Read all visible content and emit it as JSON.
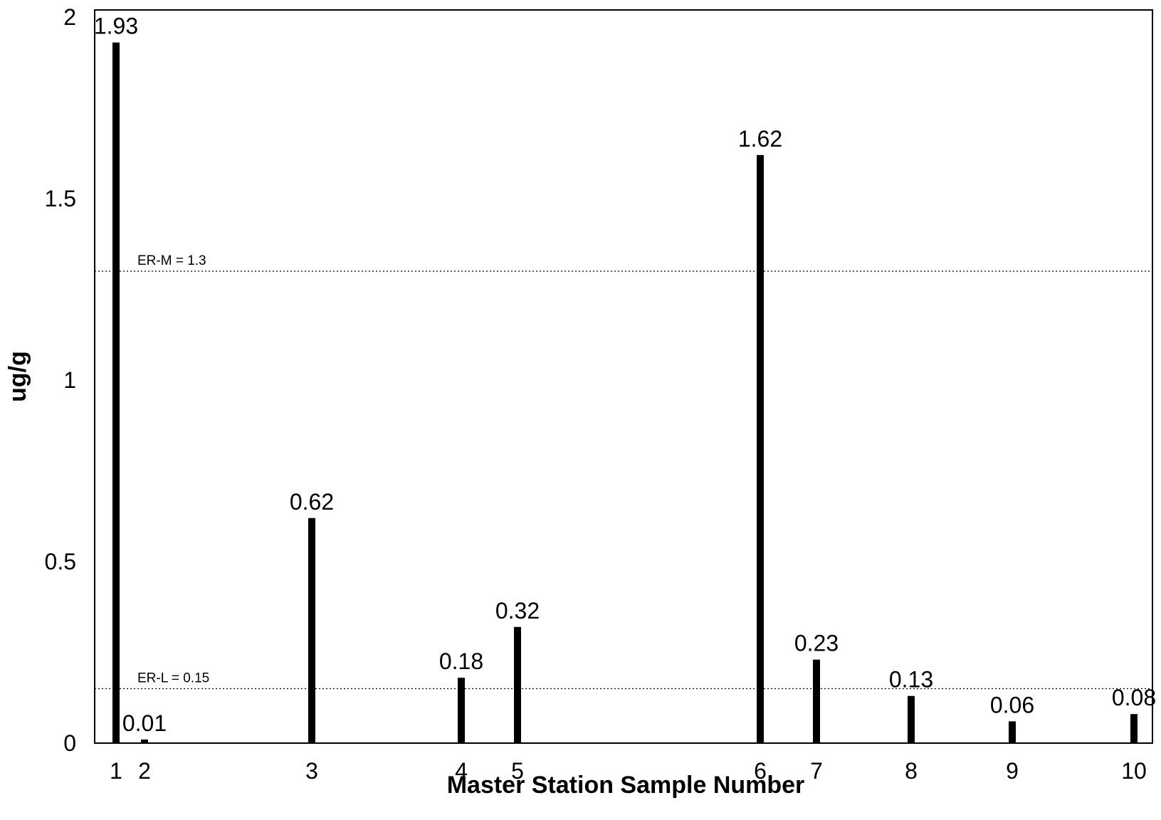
{
  "chart_data": {
    "type": "bar",
    "x": [
      1,
      2,
      3,
      4,
      5,
      6,
      7,
      8,
      9,
      10
    ],
    "values": [
      1.93,
      0.01,
      0.62,
      0.18,
      0.32,
      1.62,
      0.23,
      0.13,
      0.06,
      0.08
    ],
    "data_labels": [
      "1.93",
      "0.01",
      "0.62",
      "0.18",
      "0.32",
      "1.62",
      "0.23",
      "0.13",
      "0.06",
      "0.08"
    ],
    "x_tick_labels": [
      "1",
      "2",
      "3",
      "4",
      "5",
      "6",
      "7",
      "8",
      "9",
      "10"
    ],
    "y_ticks": [
      0,
      0.5,
      1,
      1.5,
      2
    ],
    "y_tick_labels": [
      "0",
      "0.5",
      "1",
      "1.5",
      "2"
    ],
    "ylim": [
      0,
      2
    ],
    "xlabel": "Master Station Sample Number",
    "ylabel": "ug/g",
    "title": "",
    "grid": false,
    "reference_lines": [
      {
        "label": "ER-M = 1.3",
        "value": 1.3
      },
      {
        "label": "ER-L = 0.15",
        "value": 0.15
      }
    ],
    "bar_color": "#000000"
  }
}
